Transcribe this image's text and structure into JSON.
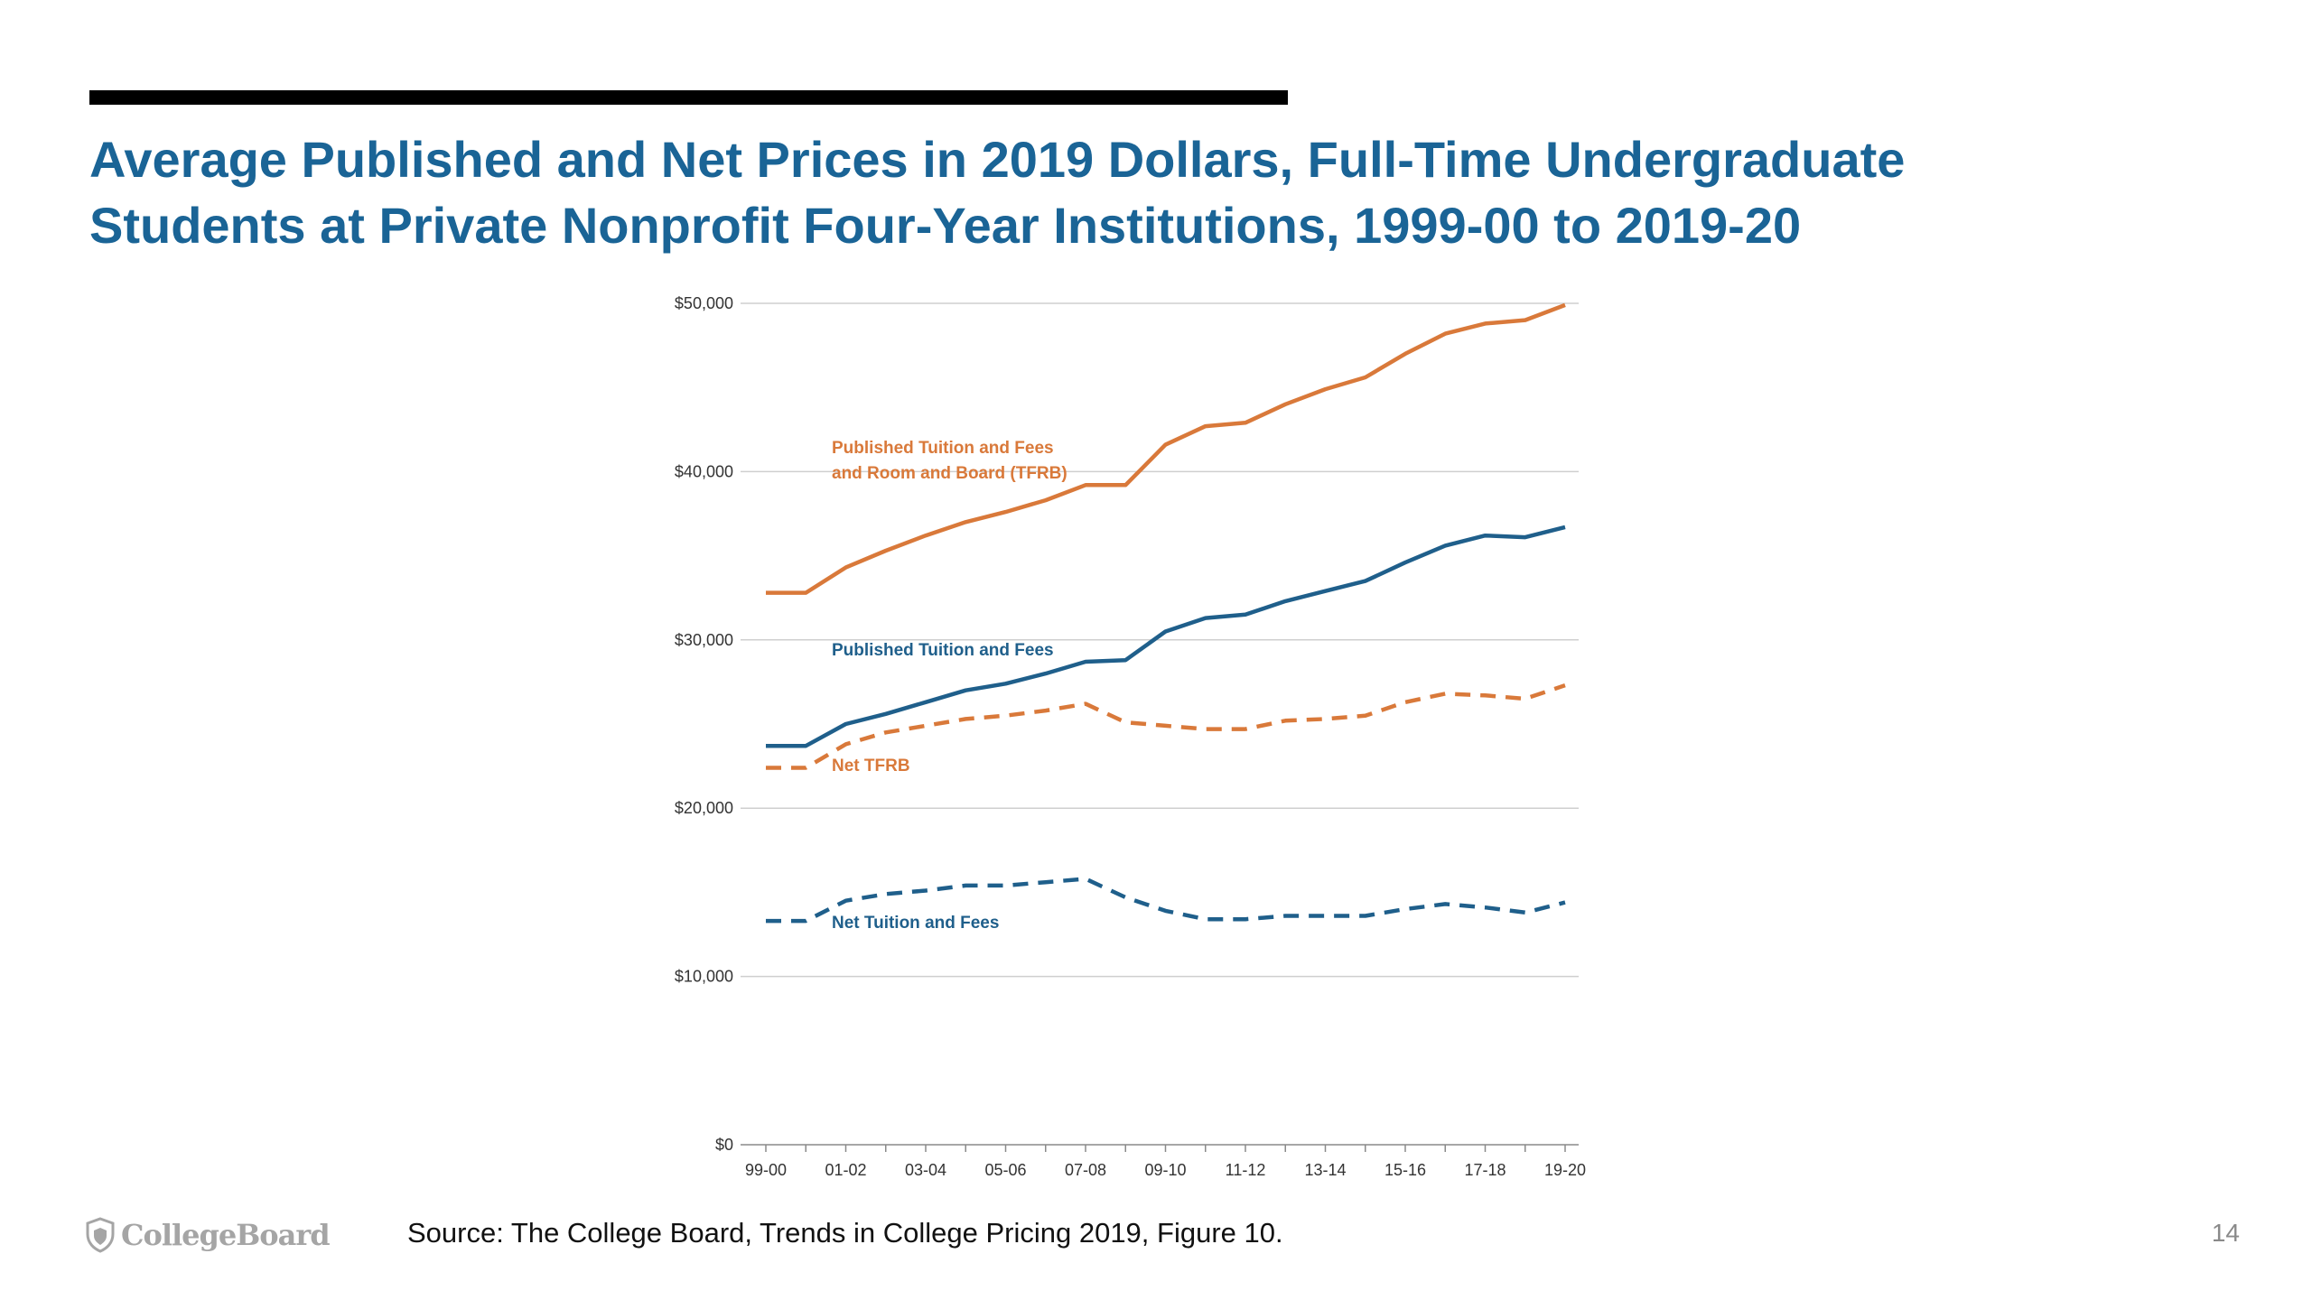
{
  "slide": {
    "title_lines": [
      "Average Published and Net Prices in 2019 Dollars, Full-Time Undergraduate",
      "Students at Private Nonprofit Four-Year Institutions, 1999-00 to 2019-20"
    ],
    "source": "Source: The College Board, Trends in College Pricing 2019, Figure 10.",
    "logo_text": "CollegeBoard",
    "page_number": "14"
  },
  "colors": {
    "title": "#1a6496",
    "orange": "#d9793a",
    "blue": "#1f5f8b",
    "grid": "#cfcfcf"
  },
  "chart_data": {
    "type": "line",
    "x": [
      "99-00",
      "00-01",
      "01-02",
      "02-03",
      "03-04",
      "04-05",
      "05-06",
      "06-07",
      "07-08",
      "08-09",
      "09-10",
      "10-11",
      "11-12",
      "12-13",
      "13-14",
      "14-15",
      "15-16",
      "16-17",
      "17-18",
      "18-19",
      "19-20"
    ],
    "x_tick_labels": [
      "99-00",
      "01-02",
      "03-04",
      "05-06",
      "07-08",
      "09-10",
      "11-12",
      "13-14",
      "15-16",
      "17-18",
      "19-20"
    ],
    "ylim": [
      0,
      50000
    ],
    "y_ticks": [
      0,
      10000,
      20000,
      30000,
      40000,
      50000
    ],
    "y_tick_labels": [
      "$0",
      "$10,000",
      "$20,000",
      "$30,000",
      "$40,000",
      "$50,000"
    ],
    "grid": true,
    "series": [
      {
        "name": "Published Tuition and Fees and Room and Board (TFRB)",
        "label_lines": [
          "Published Tuition and Fees",
          "and Room and Board (TFRB)"
        ],
        "style": "solid",
        "color": "#d9793a",
        "values": [
          32800,
          32800,
          34300,
          35300,
          36200,
          37000,
          37600,
          38300,
          39200,
          39200,
          41600,
          42700,
          42900,
          44000,
          44900,
          45600,
          47000,
          48200,
          48800,
          49000,
          49900
        ]
      },
      {
        "name": "Published Tuition and Fees",
        "label_lines": [
          "Published Tuition and Fees"
        ],
        "style": "solid",
        "color": "#1f5f8b",
        "values": [
          23700,
          23700,
          25000,
          25600,
          26300,
          27000,
          27400,
          28000,
          28700,
          28800,
          30500,
          31300,
          31500,
          32300,
          32900,
          33500,
          34600,
          35600,
          36200,
          36100,
          36700
        ]
      },
      {
        "name": "Net TFRB",
        "label_lines": [
          "Net TFRB"
        ],
        "style": "dashed",
        "color": "#d9793a",
        "values": [
          22400,
          22400,
          23800,
          24500,
          24900,
          25300,
          25500,
          25800,
          26200,
          25100,
          24900,
          24700,
          24700,
          25200,
          25300,
          25500,
          26300,
          26800,
          26700,
          26500,
          27300
        ]
      },
      {
        "name": "Net Tuition and Fees",
        "label_lines": [
          "Net Tuition and Fees"
        ],
        "style": "dashed",
        "color": "#1f5f8b",
        "values": [
          13300,
          13300,
          14500,
          14900,
          15100,
          15400,
          15400,
          15600,
          15800,
          14700,
          13900,
          13400,
          13400,
          13600,
          13600,
          13600,
          14000,
          14300,
          14100,
          13800,
          14400
        ]
      }
    ]
  }
}
